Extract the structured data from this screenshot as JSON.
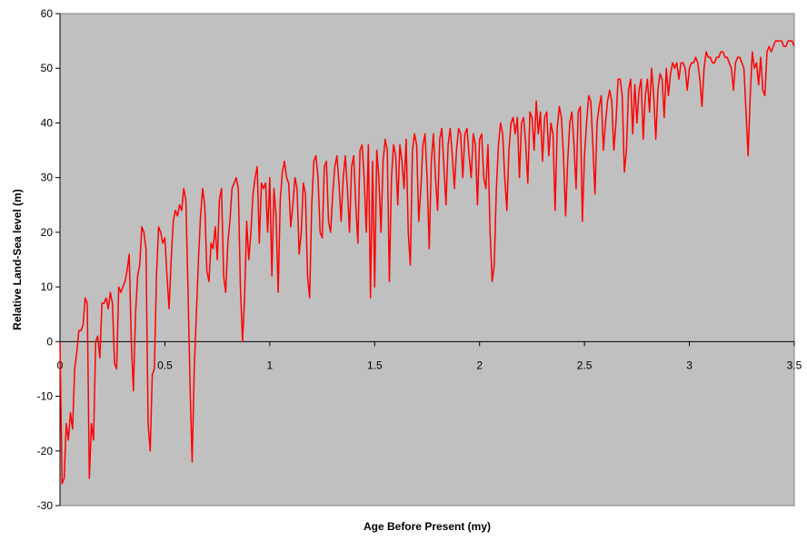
{
  "chart_data": {
    "type": "line",
    "x_label": "Age Before Present (my)",
    "y_label": "Relative Land-Sea level (m)",
    "color": "#ff0000",
    "background": "#c0c0c0",
    "xlim": [
      0,
      3.5
    ],
    "xticks": [
      0,
      0.5,
      1,
      1.5,
      2,
      2.5,
      3,
      3.5
    ],
    "ylim": [
      -30,
      60
    ],
    "yticks": [
      -30,
      -20,
      -10,
      0,
      10,
      20,
      30,
      40,
      50,
      60
    ],
    "x": [
      0,
      0.01,
      0.02,
      0.03,
      0.04,
      0.05,
      0.06,
      0.07,
      0.08,
      0.09,
      0.1,
      0.11,
      0.12,
      0.13,
      0.14,
      0.15,
      0.16,
      0.17,
      0.18,
      0.19,
      0.2,
      0.21,
      0.22,
      0.23,
      0.24,
      0.25,
      0.26,
      0.27,
      0.28,
      0.29,
      0.3,
      0.31,
      0.32,
      0.33,
      0.34,
      0.35,
      0.36,
      0.37,
      0.38,
      0.39,
      0.4,
      0.41,
      0.42,
      0.43,
      0.44,
      0.45,
      0.46,
      0.47,
      0.48,
      0.49,
      0.5,
      0.51,
      0.52,
      0.53,
      0.54,
      0.55,
      0.56,
      0.57,
      0.58,
      0.59,
      0.6,
      0.61,
      0.62,
      0.63,
      0.64,
      0.65,
      0.66,
      0.67,
      0.68,
      0.69,
      0.7,
      0.71,
      0.72,
      0.73,
      0.74,
      0.75,
      0.76,
      0.77,
      0.78,
      0.79,
      0.8,
      0.81,
      0.82,
      0.83,
      0.84,
      0.85,
      0.86,
      0.87,
      0.88,
      0.89,
      0.9,
      0.91,
      0.92,
      0.93,
      0.94,
      0.95,
      0.96,
      0.97,
      0.98,
      0.99,
      1,
      1.01,
      1.02,
      1.03,
      1.04,
      1.05,
      1.06,
      1.07,
      1.08,
      1.09,
      1.1,
      1.11,
      1.12,
      1.13,
      1.14,
      1.15,
      1.16,
      1.17,
      1.18,
      1.19,
      1.2,
      1.21,
      1.22,
      1.23,
      1.24,
      1.25,
      1.26,
      1.27,
      1.28,
      1.29,
      1.3,
      1.31,
      1.32,
      1.33,
      1.34,
      1.35,
      1.36,
      1.37,
      1.38,
      1.39,
      1.4,
      1.41,
      1.42,
      1.43,
      1.44,
      1.45,
      1.46,
      1.47,
      1.48,
      1.49,
      1.5,
      1.51,
      1.52,
      1.53,
      1.54,
      1.55,
      1.56,
      1.57,
      1.58,
      1.59,
      1.6,
      1.61,
      1.62,
      1.63,
      1.64,
      1.65,
      1.66,
      1.67,
      1.68,
      1.69,
      1.7,
      1.71,
      1.72,
      1.73,
      1.74,
      1.75,
      1.76,
      1.77,
      1.78,
      1.79,
      1.8,
      1.81,
      1.82,
      1.83,
      1.84,
      1.85,
      1.86,
      1.87,
      1.88,
      1.89,
      1.9,
      1.91,
      1.92,
      1.93,
      1.94,
      1.95,
      1.96,
      1.97,
      1.98,
      1.99,
      2,
      2.01,
      2.02,
      2.03,
      2.04,
      2.05,
      2.06,
      2.07,
      2.08,
      2.09,
      2.1,
      2.11,
      2.12,
      2.13,
      2.14,
      2.15,
      2.16,
      2.17,
      2.18,
      2.19,
      2.2,
      2.21,
      2.22,
      2.23,
      2.24,
      2.25,
      2.26,
      2.27,
      2.28,
      2.29,
      2.3,
      2.31,
      2.32,
      2.33,
      2.34,
      2.35,
      2.36,
      2.37,
      2.38,
      2.39,
      2.4,
      2.41,
      2.42,
      2.43,
      2.44,
      2.45,
      2.46,
      2.47,
      2.48,
      2.49,
      2.5,
      2.51,
      2.52,
      2.53,
      2.54,
      2.55,
      2.56,
      2.57,
      2.58,
      2.59,
      2.6,
      2.61,
      2.62,
      2.63,
      2.64,
      2.65,
      2.66,
      2.67,
      2.68,
      2.69,
      2.7,
      2.71,
      2.72,
      2.73,
      2.74,
      2.75,
      2.76,
      2.77,
      2.78,
      2.79,
      2.8,
      2.81,
      2.82,
      2.83,
      2.84,
      2.85,
      2.86,
      2.87,
      2.88,
      2.89,
      2.9,
      2.91,
      2.92,
      2.93,
      2.94,
      2.95,
      2.96,
      2.97,
      2.98,
      2.99,
      3,
      3.01,
      3.02,
      3.03,
      3.04,
      3.05,
      3.06,
      3.07,
      3.08,
      3.09,
      3.1,
      3.11,
      3.12,
      3.13,
      3.14,
      3.15,
      3.16,
      3.17,
      3.18,
      3.19,
      3.2,
      3.21,
      3.22,
      3.23,
      3.24,
      3.25,
      3.26,
      3.27,
      3.28,
      3.29,
      3.3,
      3.31,
      3.32,
      3.33,
      3.34,
      3.35,
      3.36,
      3.37,
      3.38,
      3.39,
      3.4,
      3.41,
      3.42,
      3.43,
      3.44,
      3.45,
      3.46,
      3.47,
      3.48,
      3.49,
      3.5
    ],
    "values": [
      0,
      -26,
      -25,
      -15,
      -18,
      -13,
      -16,
      -5,
      -2,
      2,
      2,
      3,
      8,
      7,
      -25,
      -15,
      -18,
      0,
      1,
      -3,
      7,
      7,
      8,
      6,
      9,
      7,
      -4,
      -5,
      10,
      9,
      10,
      11,
      13,
      16,
      0,
      -9,
      5,
      12,
      14,
      21,
      20,
      17,
      -15,
      -20,
      -6,
      -5,
      12,
      21,
      20,
      18,
      19,
      12,
      6,
      15,
      22,
      24,
      23,
      25,
      24,
      28,
      26,
      10,
      -8,
      -22,
      -5,
      5,
      15,
      23,
      28,
      25,
      13,
      11,
      18,
      17,
      21,
      15,
      26,
      28,
      12,
      9,
      18,
      22,
      28,
      29,
      30,
      28,
      10,
      0,
      8,
      22,
      15,
      20,
      27,
      30,
      32,
      18,
      29,
      28,
      29,
      20,
      30,
      12,
      28,
      23,
      9,
      26,
      31,
      33,
      30,
      29,
      21,
      25,
      30,
      28,
      16,
      20,
      29,
      27,
      12,
      8,
      25,
      33,
      34,
      30,
      20,
      19,
      32,
      33,
      22,
      20,
      27,
      32,
      34,
      29,
      22,
      30,
      34,
      28,
      20,
      32,
      34,
      25,
      18,
      35,
      36,
      30,
      20,
      36,
      8,
      33,
      10,
      35,
      30,
      20,
      33,
      37,
      35,
      11,
      30,
      36,
      34,
      25,
      36,
      33,
      28,
      37,
      20,
      14,
      35,
      38,
      36,
      22,
      28,
      36,
      38,
      30,
      17,
      33,
      38,
      30,
      24,
      37,
      39,
      32,
      25,
      36,
      39,
      34,
      28,
      35,
      39,
      38,
      30,
      38,
      39,
      34,
      30,
      38,
      36,
      25,
      37,
      38,
      30,
      28,
      36,
      20,
      11,
      14,
      28,
      36,
      40,
      38,
      30,
      24,
      35,
      40,
      41,
      38,
      41,
      30,
      40,
      41,
      36,
      29,
      42,
      41,
      35,
      44,
      38,
      42,
      33,
      41,
      42,
      34,
      40,
      38,
      24,
      39,
      43,
      41,
      34,
      23,
      33,
      40,
      42,
      36,
      28,
      42,
      43,
      22,
      34,
      40,
      45,
      44,
      36,
      27,
      40,
      43,
      45,
      35,
      40,
      44,
      46,
      44,
      35,
      40,
      48,
      48,
      45,
      31,
      35,
      46,
      48,
      38,
      47,
      40,
      46,
      48,
      37,
      45,
      48,
      42,
      50,
      45,
      37,
      46,
      49,
      48,
      41,
      50,
      45,
      49,
      51,
      50,
      51,
      48,
      51,
      51,
      50,
      46,
      50,
      51,
      51,
      52,
      51,
      48,
      43,
      50,
      53,
      52,
      52,
      51,
      51,
      52,
      52,
      53,
      53,
      52,
      52,
      51,
      50,
      46,
      51,
      52,
      52,
      51,
      50,
      42,
      34,
      45,
      53,
      50,
      51,
      47,
      52,
      46,
      45,
      53,
      54,
      53,
      54,
      55,
      55,
      55,
      55,
      54,
      54,
      55,
      55,
      55,
      54
    ]
  }
}
